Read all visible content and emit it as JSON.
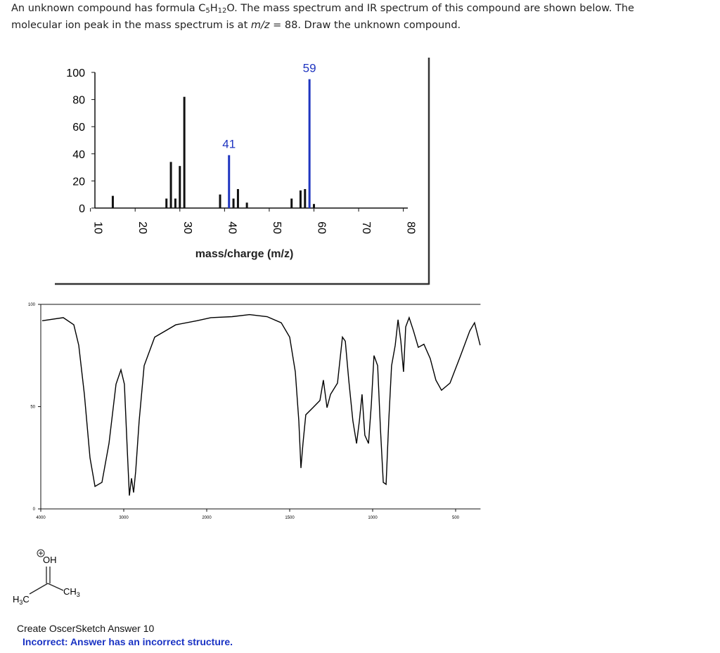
{
  "question": [
    "An unknown compound has formula C",
    "5",
    "H",
    "12",
    "O.  The mass spectrum and IR spectrum of this compound are shown below.  The molecular ion peak in the mass spectrum is at ",
    "m/z",
    " = 88.  Draw the unknown compound."
  ],
  "chart_data": [
    {
      "type": "bar",
      "xlabel": "mass/charge (m/z)",
      "x": [
        15,
        27,
        28,
        29,
        30,
        31,
        39,
        41,
        42,
        43,
        45,
        55,
        57,
        58,
        59,
        60
      ],
      "values": [
        9,
        7,
        34,
        7,
        31,
        82,
        10,
        39,
        7,
        14,
        4,
        7,
        13,
        14,
        95,
        3
      ],
      "annotations": [
        41,
        59
      ],
      "color": "#111111",
      "highlight_color": "#1f35c0",
      "xlim": [
        11,
        81
      ],
      "xticks": [
        10,
        20,
        30,
        40,
        50,
        60,
        70,
        80
      ],
      "ylim": [
        0,
        100
      ],
      "yticks": [
        0,
        20,
        40,
        60,
        80,
        100
      ]
    },
    {
      "type": "line",
      "x": [
        3983,
        3729,
        3602,
        3542,
        3475,
        3407,
        3347,
        3263,
        3178,
        3093,
        3034,
        2992,
        2958,
        2932,
        2907,
        2881,
        2856,
        2814,
        2754,
        2627,
        2373,
        2119,
        1975,
        1847,
        1742,
        1636,
        1551,
        1500,
        1466,
        1445,
        1432,
        1420,
        1403,
        1360,
        1318,
        1297,
        1275,
        1254,
        1212,
        1182,
        1165,
        1144,
        1119,
        1097,
        1080,
        1064,
        1047,
        1025,
        1008,
        992,
        970,
        953,
        936,
        919,
        903,
        886,
        864,
        847,
        830,
        814,
        801,
        780,
        754,
        725,
        691,
        653,
        619,
        585,
        534,
        470,
        415,
        386,
        352
      ],
      "y": [
        92,
        93.5,
        90,
        80,
        56,
        25,
        11,
        13,
        32,
        61,
        68,
        61,
        29,
        6.5,
        15,
        8,
        18.5,
        43,
        70,
        84,
        90,
        92,
        93.5,
        94,
        95,
        94,
        91,
        84,
        67,
        43,
        20,
        32,
        46,
        49.5,
        53,
        63,
        49.5,
        56,
        61.5,
        84,
        82,
        63,
        43,
        32,
        43,
        56,
        36,
        32,
        51,
        75,
        70,
        39,
        13,
        12,
        43,
        70,
        80,
        92.5,
        82,
        67,
        89,
        93.5,
        87,
        79,
        80.5,
        73.5,
        63,
        58,
        61.5,
        75,
        87,
        91,
        80
      ],
      "color": "#000000",
      "xlim": [
        4000,
        350
      ],
      "xticks": [
        4000,
        3000,
        2000,
        1500,
        1000,
        500
      ],
      "ylim": [
        0,
        100
      ],
      "yticks": [
        0,
        50,
        100
      ]
    }
  ],
  "molecule": {
    "top": "OH",
    "left": [
      "H",
      "3",
      "C"
    ],
    "right": [
      "CH",
      "3"
    ]
  },
  "answer": {
    "title": "Create OscerSketch Answer 10",
    "result": "Incorrect: Answer has an incorrect structure."
  }
}
